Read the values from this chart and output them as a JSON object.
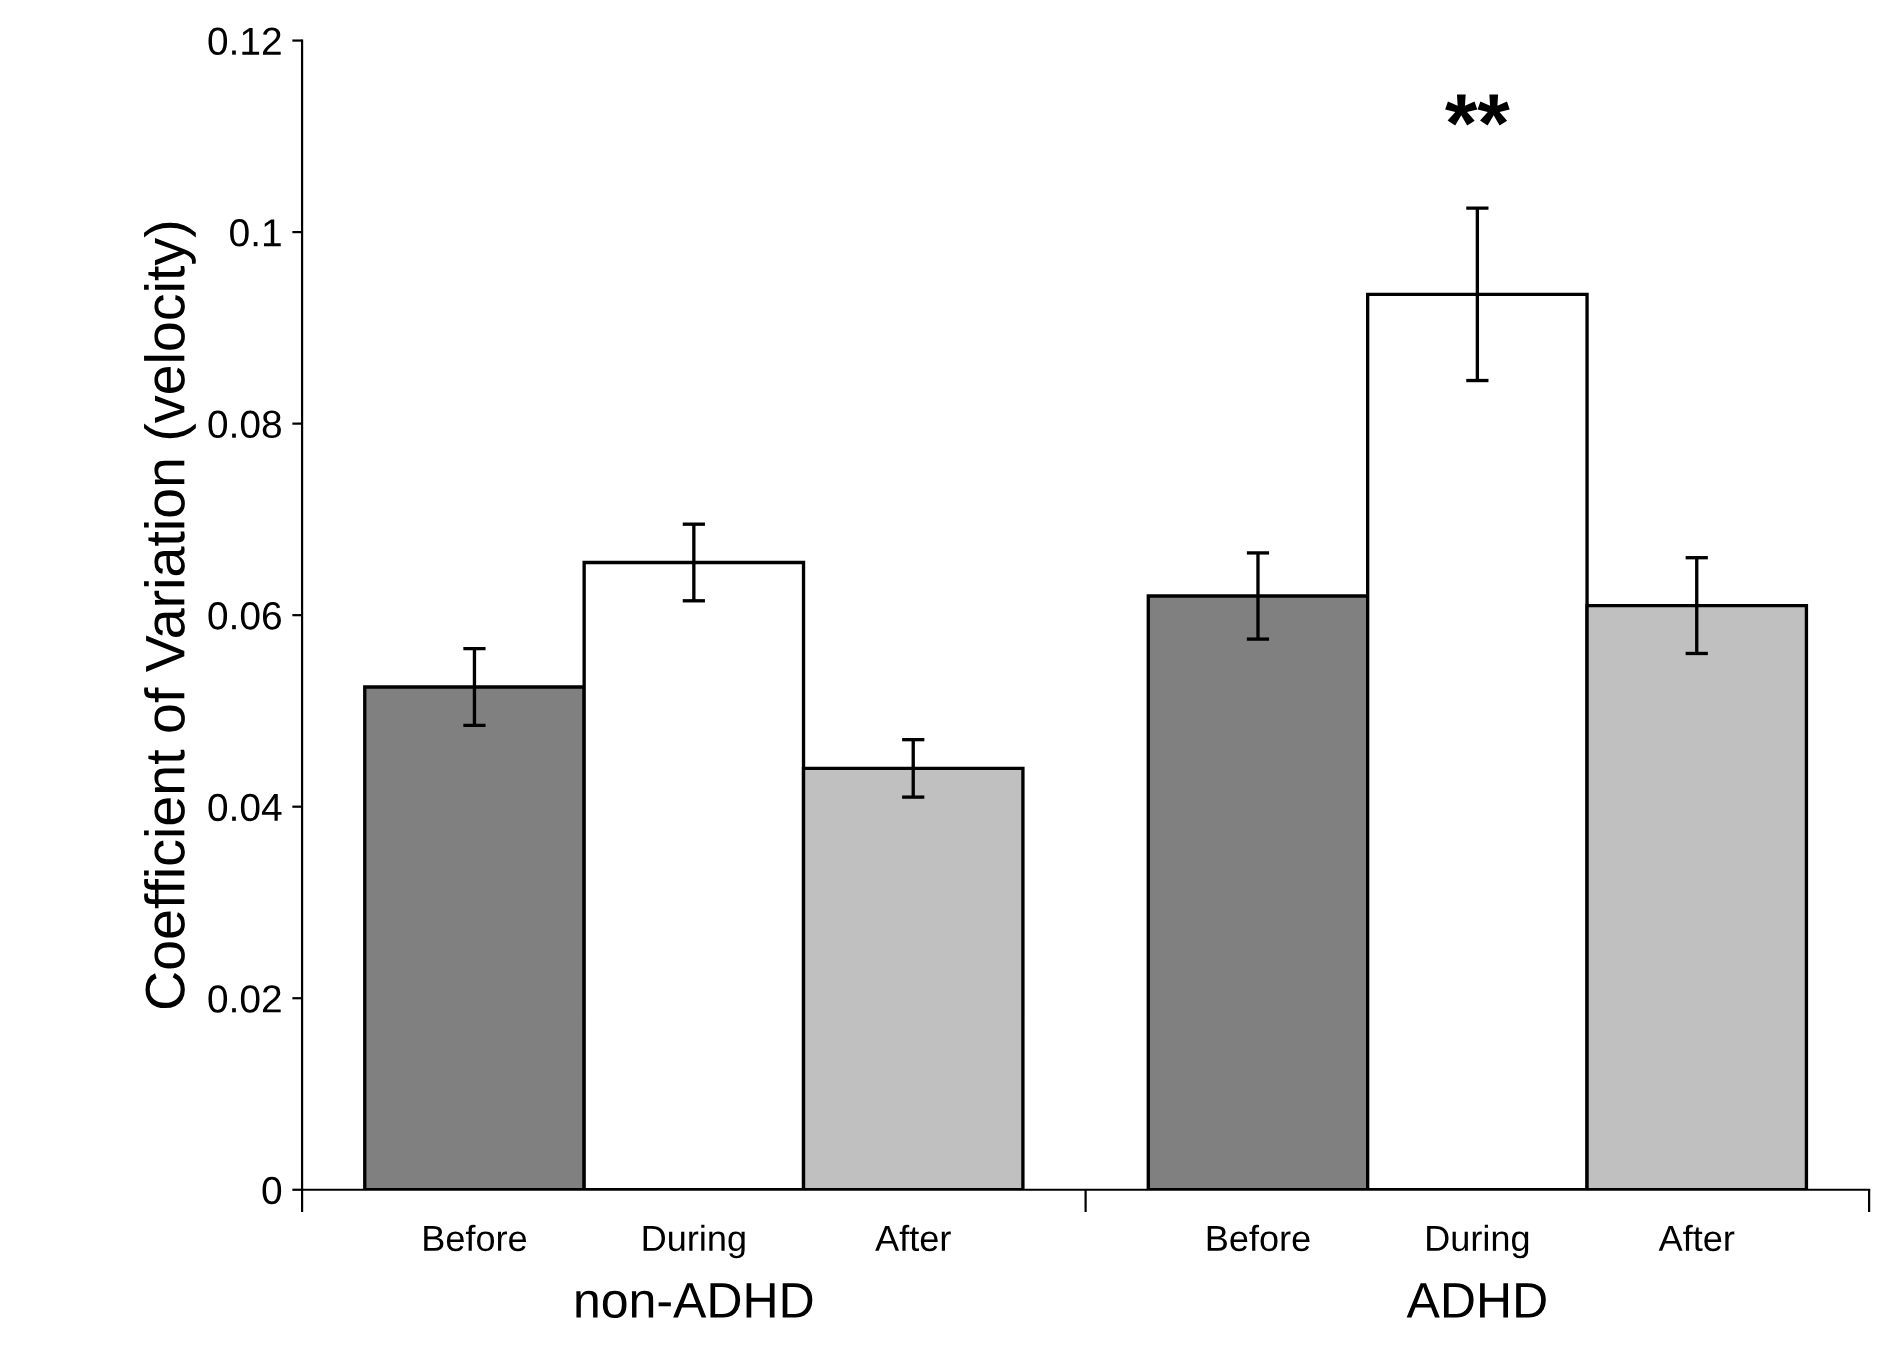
{
  "chart_data": {
    "type": "bar",
    "ylabel": "Coefficient of Variation (velocity)",
    "categories": [
      "non-ADHD",
      "ADHD"
    ],
    "series": [
      {
        "name": "Before",
        "color": "#808080",
        "values": [
          0.0525,
          0.062
        ],
        "errors": [
          0.004,
          0.0045
        ]
      },
      {
        "name": "During",
        "color": "#ffffff",
        "values": [
          0.0655,
          0.0935
        ],
        "errors": [
          0.004,
          0.009
        ]
      },
      {
        "name": "After",
        "color": "#c0c0c0",
        "values": [
          0.044,
          0.061
        ],
        "errors": [
          0.003,
          0.005
        ]
      }
    ],
    "ylim": [
      0,
      0.12
    ],
    "yticks": [
      0,
      0.02,
      0.04,
      0.06,
      0.08,
      0.1,
      0.12
    ],
    "grid": false,
    "legend": false,
    "annotations": [
      "**"
    ]
  }
}
